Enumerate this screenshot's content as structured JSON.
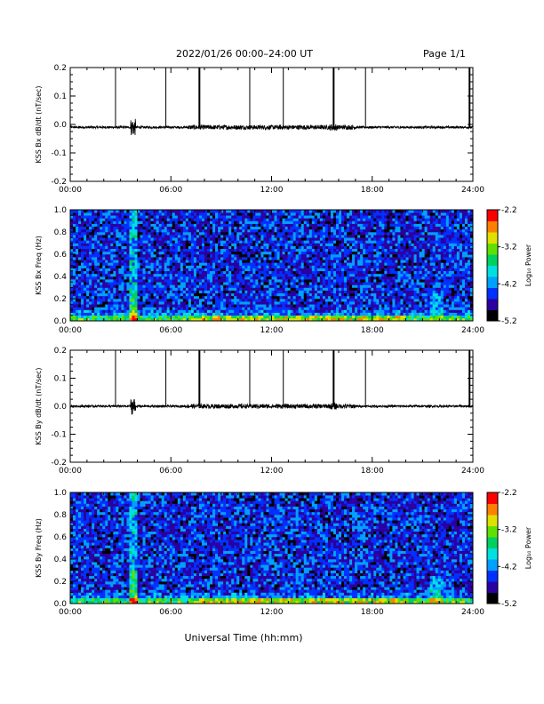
{
  "header": {
    "title": "2022/01/26  00:00–24:00 UT",
    "page": "Page 1/1"
  },
  "xaxis_label": "Universal Time (hh:mm)",
  "colorbar": {
    "label": "Log₁₀ Power",
    "ticks": [
      "-2.2",
      "-3.2",
      "-4.2",
      "-5.2"
    ],
    "range": [
      -5.2,
      -2.2
    ],
    "colors": [
      "#000000",
      "#2a00a0",
      "#0030ff",
      "#00a0ff",
      "#00e0e0",
      "#00d060",
      "#60e000",
      "#e0e000",
      "#ff8000",
      "#ff0000"
    ]
  },
  "chart_data": [
    {
      "type": "line",
      "ylabel": "KSS Bx dB/dt (nT/sec)",
      "xlim": [
        0,
        24
      ],
      "ylim": [
        -0.2,
        0.2
      ],
      "x_ticks": [
        "00:00",
        "06:00",
        "12:00",
        "18:00",
        "24:00"
      ],
      "y_ticks": [
        "0.2",
        "0.1",
        "0.0",
        "-0.1",
        "-0.2"
      ],
      "baseline": -0.01,
      "spikes_hours": [
        2.7,
        5.7,
        7.7,
        10.7,
        12.7,
        15.7,
        17.6,
        23.8
      ],
      "spike_top": 0.2
    },
    {
      "type": "heatmap",
      "ylabel": "KSS Bx Freq (Hz)",
      "xlim": [
        0,
        24
      ],
      "ylim": [
        0.0,
        1.0
      ],
      "x_ticks": [
        "00:00",
        "06:00",
        "12:00",
        "18:00",
        "24:00"
      ],
      "y_ticks": [
        "1.0",
        "0.8",
        "0.6",
        "0.4",
        "0.2",
        "0.0"
      ],
      "value_range": [
        -5.2,
        -2.2
      ]
    },
    {
      "type": "line",
      "ylabel": "KSS By dB/dt (nT/sec)",
      "xlim": [
        0,
        24
      ],
      "ylim": [
        -0.2,
        0.2
      ],
      "x_ticks": [
        "00:00",
        "06:00",
        "12:00",
        "18:00",
        "24:00"
      ],
      "y_ticks": [
        "0.2",
        "0.1",
        "0.0",
        "-0.1",
        "-0.2"
      ],
      "baseline": 0.0,
      "spikes_hours": [
        2.7,
        5.7,
        7.7,
        10.7,
        12.7,
        15.7,
        17.6,
        23.8
      ],
      "spike_top": 0.2
    },
    {
      "type": "heatmap",
      "ylabel": "KSS By Freq (Hz)",
      "xlim": [
        0,
        24
      ],
      "ylim": [
        0.0,
        1.0
      ],
      "x_ticks": [
        "00:00",
        "06:00",
        "12:00",
        "18:00",
        "24:00"
      ],
      "y_ticks": [
        "1.0",
        "0.8",
        "0.6",
        "0.4",
        "0.2",
        "0.0"
      ],
      "value_range": [
        -5.2,
        -2.2
      ]
    }
  ]
}
